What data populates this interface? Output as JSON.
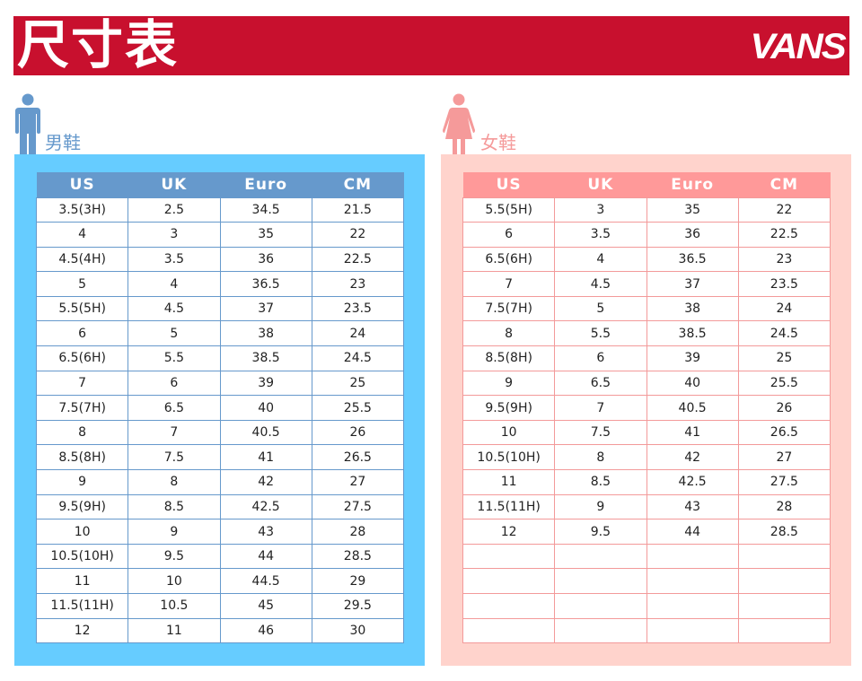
{
  "header": {
    "title": "尺寸表",
    "logo": "VANS"
  },
  "colors": {
    "banner": "#C8102E",
    "men_panel": "#66CCFF",
    "men_header": "#6699CC",
    "women_panel": "#FFD3CC",
    "women_header": "#FF9999"
  },
  "men": {
    "label": "男鞋",
    "icon": "man-icon",
    "columns": [
      "US",
      "UK",
      "Euro",
      "CM"
    ],
    "rows": [
      [
        "3.5(3H)",
        "2.5",
        "34.5",
        "21.5"
      ],
      [
        "4",
        "3",
        "35",
        "22"
      ],
      [
        "4.5(4H)",
        "3.5",
        "36",
        "22.5"
      ],
      [
        "5",
        "4",
        "36.5",
        "23"
      ],
      [
        "5.5(5H)",
        "4.5",
        "37",
        "23.5"
      ],
      [
        "6",
        "5",
        "38",
        "24"
      ],
      [
        "6.5(6H)",
        "5.5",
        "38.5",
        "24.5"
      ],
      [
        "7",
        "6",
        "39",
        "25"
      ],
      [
        "7.5(7H)",
        "6.5",
        "40",
        "25.5"
      ],
      [
        "8",
        "7",
        "40.5",
        "26"
      ],
      [
        "8.5(8H)",
        "7.5",
        "41",
        "26.5"
      ],
      [
        "9",
        "8",
        "42",
        "27"
      ],
      [
        "9.5(9H)",
        "8.5",
        "42.5",
        "27.5"
      ],
      [
        "10",
        "9",
        "43",
        "28"
      ],
      [
        "10.5(10H)",
        "9.5",
        "44",
        "28.5"
      ],
      [
        "11",
        "10",
        "44.5",
        "29"
      ],
      [
        "11.5(11H)",
        "10.5",
        "45",
        "29.5"
      ],
      [
        "12",
        "11",
        "46",
        "30"
      ]
    ]
  },
  "women": {
    "label": "女鞋",
    "icon": "woman-icon",
    "columns": [
      "US",
      "UK",
      "Euro",
      "CM"
    ],
    "rows": [
      [
        "5.5(5H)",
        "3",
        "35",
        "22"
      ],
      [
        "6",
        "3.5",
        "36",
        "22.5"
      ],
      [
        "6.5(6H)",
        "4",
        "36.5",
        "23"
      ],
      [
        "7",
        "4.5",
        "37",
        "23.5"
      ],
      [
        "7.5(7H)",
        "5",
        "38",
        "24"
      ],
      [
        "8",
        "5.5",
        "38.5",
        "24.5"
      ],
      [
        "8.5(8H)",
        "6",
        "39",
        "25"
      ],
      [
        "9",
        "6.5",
        "40",
        "25.5"
      ],
      [
        "9.5(9H)",
        "7",
        "40.5",
        "26"
      ],
      [
        "10",
        "7.5",
        "41",
        "26.5"
      ],
      [
        "10.5(10H)",
        "8",
        "42",
        "27"
      ],
      [
        "11",
        "8.5",
        "42.5",
        "27.5"
      ],
      [
        "11.5(11H)",
        "9",
        "43",
        "28"
      ],
      [
        "12",
        "9.5",
        "44",
        "28.5"
      ],
      [
        "",
        "",
        "",
        ""
      ],
      [
        "",
        "",
        "",
        ""
      ],
      [
        "",
        "",
        "",
        ""
      ],
      [
        "",
        "",
        "",
        ""
      ]
    ]
  }
}
